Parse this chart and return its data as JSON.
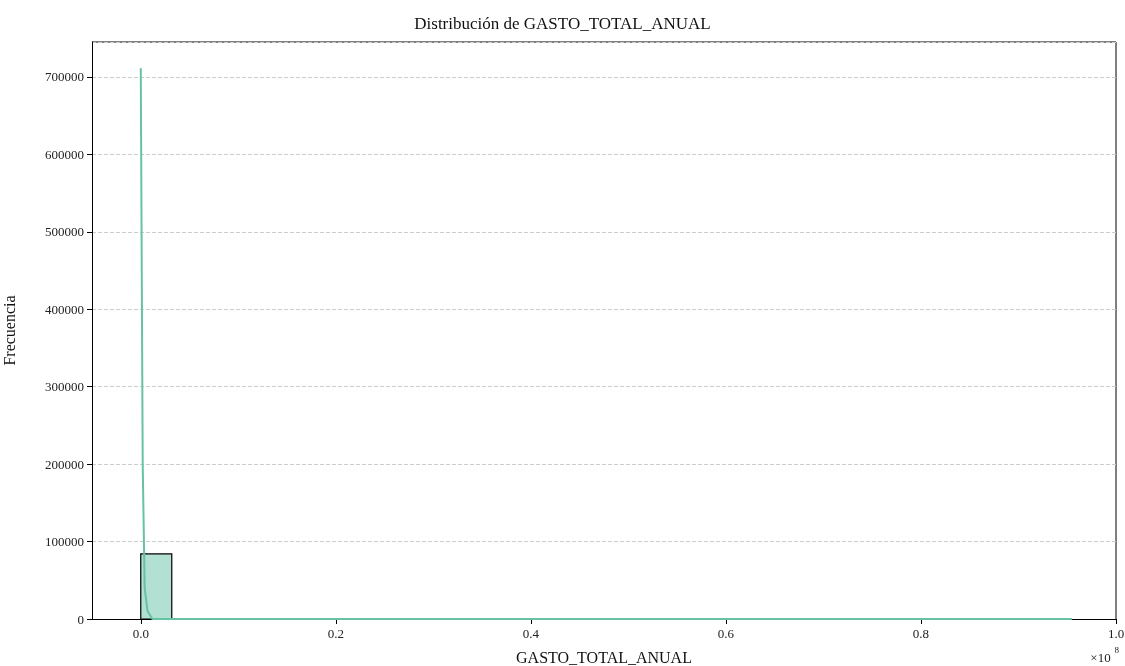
{
  "chart_data": {
    "type": "histogram",
    "title": "Distribución de GASTO_TOTAL_ANUAL",
    "xlabel": "GASTO_TOTAL_ANUAL",
    "ylabel": "Frecuencia",
    "annotations": [
      "×10$^{8}$"
    ],
    "xlim": [
      -0.05,
      1.0
    ],
    "xticks": [
      {
        "value": 0,
        "label": "0.0"
      },
      {
        "value": 0.2,
        "label": "0.2"
      },
      {
        "value": 0.4,
        "label": "0.4"
      },
      {
        "value": 0.6,
        "label": "0.6"
      },
      {
        "value": 0.8,
        "label": "0.8"
      },
      {
        "value": 1.0,
        "label": "1.0"
      }
    ],
    "ylim": [
      0,
      745000
    ],
    "yticks": [
      0,
      100000,
      200000,
      300000,
      400000,
      500000,
      600000,
      700000
    ],
    "grid": "y",
    "series": [
      {
        "color": "#b2e0d2",
        "bins": [
          0,
          0.0318,
          0.0636,
          0.0954,
          0.1272,
          0.159,
          0.1908,
          0.2226,
          0.2544,
          0.2862,
          0.318,
          0.3498,
          0.3816,
          0.4134,
          0.4452,
          0.477,
          0.5088,
          0.5406,
          0.5724,
          0.6042,
          0.636,
          0.6678,
          0.6996,
          0.7314,
          0.7632,
          0.795,
          0.8268,
          0.8586,
          0.8904,
          0.9222,
          0.954
        ],
        "values": [
          84000,
          0,
          0,
          0,
          0,
          0,
          0,
          0,
          0,
          0,
          0,
          0,
          0,
          0,
          0,
          0,
          0,
          0,
          0,
          0,
          0,
          0,
          0,
          0,
          0,
          0,
          0,
          0,
          0,
          0
        ]
      },
      {
        "type": "line",
        "color": "#66c2a5",
        "x": [
          0,
          0.002,
          0.004,
          0.007,
          0.012,
          0.02,
          0.035,
          0.06,
          0.1,
          0.2,
          0.5,
          0.954
        ],
        "values": [
          710000,
          200000,
          40000,
          10000,
          0,
          0,
          0,
          0,
          0,
          0,
          0,
          0
        ]
      }
    ]
  }
}
